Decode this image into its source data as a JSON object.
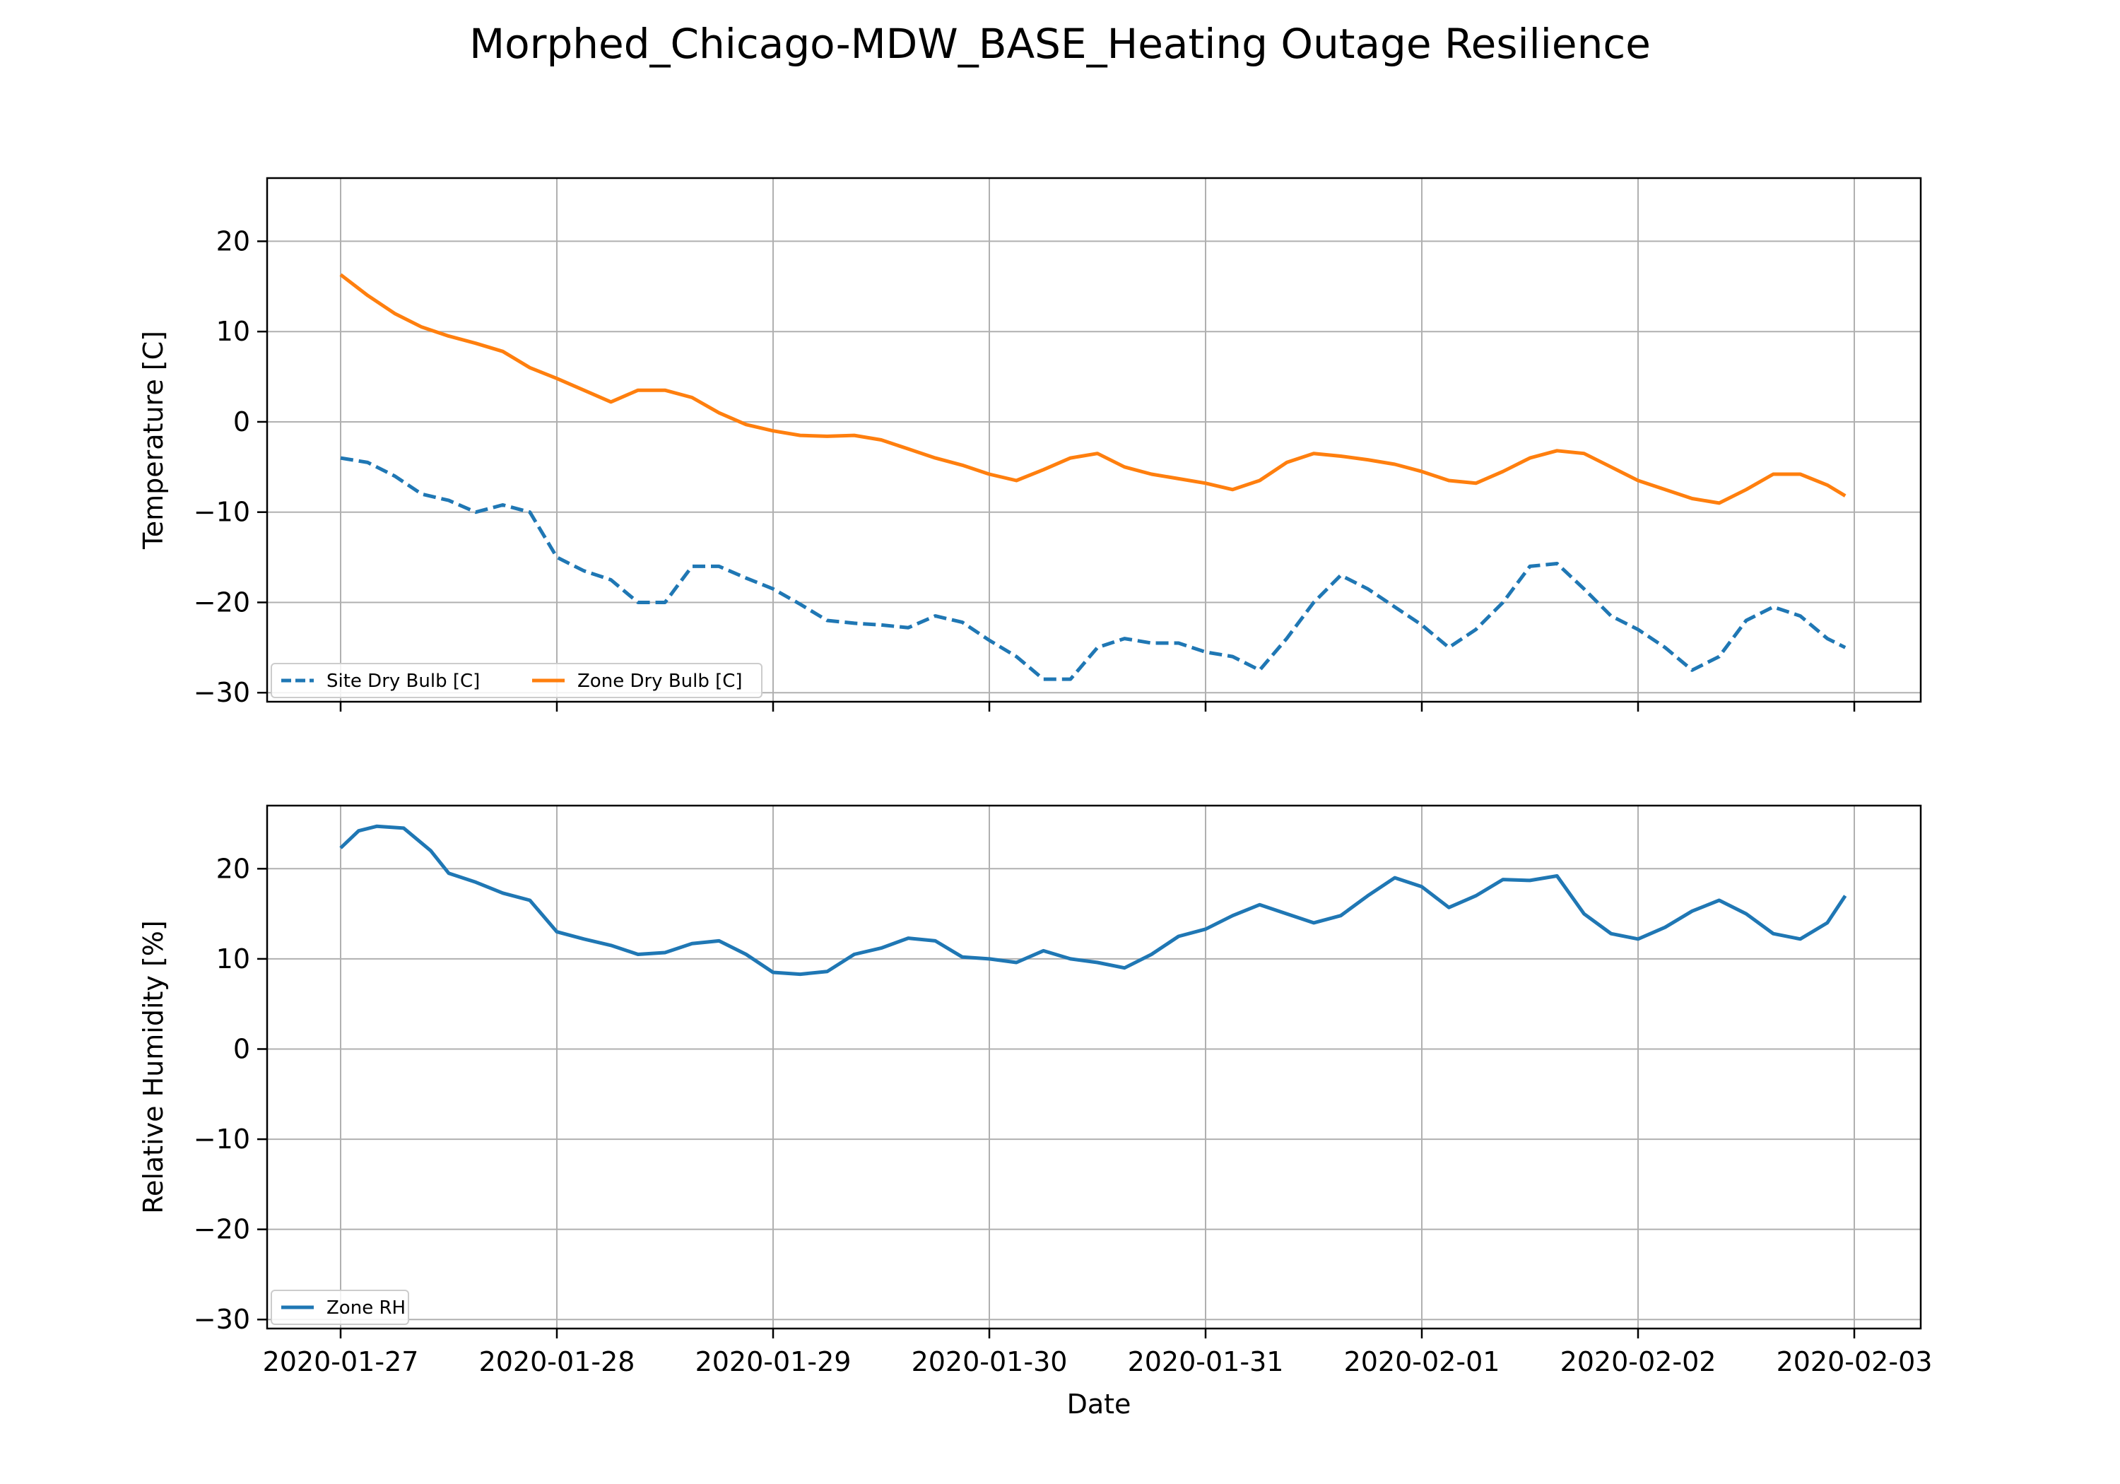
{
  "figure": {
    "suptitle": "Morphed_Chicago-MDW_BASE_Heating Outage Resilience",
    "xlabel": "Date"
  },
  "colors": {
    "site_dry_bulb": "#1f77b4",
    "zone_dry_bulb": "#ff7f0e",
    "zone_rh": "#1f77b4",
    "grid": "#b0b0b0"
  },
  "chart_data": [
    {
      "type": "line",
      "ylabel": "Temperature [C]",
      "xlabel": "",
      "ylim": [
        -31,
        27
      ],
      "yticks": [
        -30,
        -20,
        -10,
        0,
        10,
        20
      ],
      "xticks": [
        "2020-01-27",
        "2020-01-28",
        "2020-01-29",
        "2020-01-30",
        "2020-01-31",
        "2020-02-01",
        "2020-02-02",
        "2020-02-03"
      ],
      "grid": true,
      "legend": "lower-left",
      "series": [
        {
          "name": "Site Dry Bulb [C]",
          "style": "dashed",
          "color": "#1f77b4",
          "x": [
            "2020-01-27 00:00",
            "2020-01-27 03:00",
            "2020-01-27 06:00",
            "2020-01-27 09:00",
            "2020-01-27 12:00",
            "2020-01-27 15:00",
            "2020-01-27 18:00",
            "2020-01-27 21:00",
            "2020-01-28 00:00",
            "2020-01-28 03:00",
            "2020-01-28 06:00",
            "2020-01-28 09:00",
            "2020-01-28 12:00",
            "2020-01-28 15:00",
            "2020-01-28 18:00",
            "2020-01-28 21:00",
            "2020-01-29 00:00",
            "2020-01-29 03:00",
            "2020-01-29 06:00",
            "2020-01-29 09:00",
            "2020-01-29 12:00",
            "2020-01-29 15:00",
            "2020-01-29 18:00",
            "2020-01-29 21:00",
            "2020-01-30 00:00",
            "2020-01-30 03:00",
            "2020-01-30 06:00",
            "2020-01-30 09:00",
            "2020-01-30 12:00",
            "2020-01-30 15:00",
            "2020-01-30 18:00",
            "2020-01-30 21:00",
            "2020-01-31 00:00",
            "2020-01-31 03:00",
            "2020-01-31 06:00",
            "2020-01-31 09:00",
            "2020-01-31 12:00",
            "2020-01-31 15:00",
            "2020-01-31 18:00",
            "2020-01-31 21:00",
            "2020-02-01 00:00",
            "2020-02-01 03:00",
            "2020-02-01 06:00",
            "2020-02-01 09:00",
            "2020-02-01 12:00",
            "2020-02-01 15:00",
            "2020-02-01 18:00",
            "2020-02-01 21:00",
            "2020-02-02 00:00",
            "2020-02-02 03:00",
            "2020-02-02 06:00",
            "2020-02-02 09:00",
            "2020-02-02 12:00",
            "2020-02-02 15:00",
            "2020-02-02 18:00",
            "2020-02-02 21:00",
            "2020-02-02 23:00"
          ],
          "values": [
            -4.0,
            -4.5,
            -6.0,
            -8.0,
            -8.7,
            -10.0,
            -9.2,
            -10.0,
            -15.0,
            -16.5,
            -17.5,
            -20.0,
            -20.0,
            -16.0,
            -16.0,
            -17.3,
            -18.5,
            -20.2,
            -22.0,
            -22.3,
            -22.5,
            -22.8,
            -21.5,
            -22.2,
            -24.2,
            -26.0,
            -28.5,
            -28.5,
            -25.0,
            -24.0,
            -24.5,
            -24.5,
            -25.5,
            -26.0,
            -27.5,
            -24.0,
            -20.0,
            -17.0,
            -18.5,
            -20.5,
            -22.5,
            -25.0,
            -23.0,
            -20.0,
            -16.0,
            -15.7,
            -18.5,
            -21.5,
            -23.0,
            -25.0,
            -27.5,
            -26.0,
            -22.0,
            -20.5,
            -21.5,
            -24.0,
            -25.0
          ]
        },
        {
          "name": "Zone Dry Bulb [C]",
          "style": "solid",
          "color": "#ff7f0e",
          "x": [
            "2020-01-27 00:00",
            "2020-01-27 03:00",
            "2020-01-27 06:00",
            "2020-01-27 09:00",
            "2020-01-27 12:00",
            "2020-01-27 15:00",
            "2020-01-27 18:00",
            "2020-01-27 21:00",
            "2020-01-28 00:00",
            "2020-01-28 03:00",
            "2020-01-28 06:00",
            "2020-01-28 09:00",
            "2020-01-28 12:00",
            "2020-01-28 15:00",
            "2020-01-28 18:00",
            "2020-01-28 21:00",
            "2020-01-29 00:00",
            "2020-01-29 03:00",
            "2020-01-29 06:00",
            "2020-01-29 09:00",
            "2020-01-29 12:00",
            "2020-01-29 15:00",
            "2020-01-29 18:00",
            "2020-01-29 21:00",
            "2020-01-30 00:00",
            "2020-01-30 03:00",
            "2020-01-30 06:00",
            "2020-01-30 09:00",
            "2020-01-30 12:00",
            "2020-01-30 15:00",
            "2020-01-30 18:00",
            "2020-01-30 21:00",
            "2020-01-31 00:00",
            "2020-01-31 03:00",
            "2020-01-31 06:00",
            "2020-01-31 09:00",
            "2020-01-31 12:00",
            "2020-01-31 15:00",
            "2020-01-31 18:00",
            "2020-01-31 21:00",
            "2020-02-01 00:00",
            "2020-02-01 03:00",
            "2020-02-01 06:00",
            "2020-02-01 09:00",
            "2020-02-01 12:00",
            "2020-02-01 15:00",
            "2020-02-01 18:00",
            "2020-02-01 21:00",
            "2020-02-02 00:00",
            "2020-02-02 03:00",
            "2020-02-02 06:00",
            "2020-02-02 09:00",
            "2020-02-02 12:00",
            "2020-02-02 15:00",
            "2020-02-02 18:00",
            "2020-02-02 21:00",
            "2020-02-02 23:00"
          ],
          "values": [
            16.3,
            14.0,
            12.0,
            10.5,
            9.5,
            8.7,
            7.8,
            6.0,
            4.8,
            3.5,
            2.2,
            3.5,
            3.5,
            2.7,
            1.0,
            -0.3,
            -1.0,
            -1.5,
            -1.6,
            -1.5,
            -2.0,
            -3.0,
            -4.0,
            -4.8,
            -5.8,
            -6.5,
            -5.3,
            -4.0,
            -3.5,
            -5.0,
            -5.8,
            -6.3,
            -6.8,
            -7.5,
            -6.5,
            -4.5,
            -3.5,
            -3.8,
            -4.2,
            -4.7,
            -5.5,
            -6.5,
            -6.8,
            -5.5,
            -4.0,
            -3.2,
            -3.5,
            -5.0,
            -6.5,
            -7.5,
            -8.5,
            -9.0,
            -7.5,
            -5.8,
            -5.8,
            -7.0,
            -8.2
          ]
        }
      ]
    },
    {
      "type": "line",
      "ylabel": "Relative Humidity [%]",
      "xlabel": "Date",
      "ylim": [
        -31,
        27
      ],
      "yticks": [
        -30,
        -20,
        -10,
        0,
        10,
        20
      ],
      "xticks": [
        "2020-01-27",
        "2020-01-28",
        "2020-01-29",
        "2020-01-30",
        "2020-01-31",
        "2020-02-01",
        "2020-02-02",
        "2020-02-03"
      ],
      "grid": true,
      "legend": "lower-left",
      "series": [
        {
          "name": "Zone RH",
          "style": "solid",
          "color": "#1f77b4",
          "x": [
            "2020-01-27 00:00",
            "2020-01-27 02:00",
            "2020-01-27 04:00",
            "2020-01-27 07:00",
            "2020-01-27 10:00",
            "2020-01-27 12:00",
            "2020-01-27 15:00",
            "2020-01-27 18:00",
            "2020-01-27 21:00",
            "2020-01-28 00:00",
            "2020-01-28 03:00",
            "2020-01-28 06:00",
            "2020-01-28 09:00",
            "2020-01-28 12:00",
            "2020-01-28 15:00",
            "2020-01-28 18:00",
            "2020-01-28 21:00",
            "2020-01-29 00:00",
            "2020-01-29 03:00",
            "2020-01-29 06:00",
            "2020-01-29 09:00",
            "2020-01-29 12:00",
            "2020-01-29 15:00",
            "2020-01-29 18:00",
            "2020-01-29 21:00",
            "2020-01-30 00:00",
            "2020-01-30 03:00",
            "2020-01-30 06:00",
            "2020-01-30 09:00",
            "2020-01-30 12:00",
            "2020-01-30 15:00",
            "2020-01-30 18:00",
            "2020-01-30 21:00",
            "2020-01-31 00:00",
            "2020-01-31 03:00",
            "2020-01-31 06:00",
            "2020-01-31 09:00",
            "2020-01-31 12:00",
            "2020-01-31 15:00",
            "2020-01-31 18:00",
            "2020-01-31 21:00",
            "2020-02-01 00:00",
            "2020-02-01 03:00",
            "2020-02-01 06:00",
            "2020-02-01 09:00",
            "2020-02-01 12:00",
            "2020-02-01 15:00",
            "2020-02-01 18:00",
            "2020-02-01 21:00",
            "2020-02-02 00:00",
            "2020-02-02 03:00",
            "2020-02-02 06:00",
            "2020-02-02 09:00",
            "2020-02-02 12:00",
            "2020-02-02 15:00",
            "2020-02-02 18:00",
            "2020-02-02 21:00",
            "2020-02-02 23:00"
          ],
          "values": [
            22.3,
            24.2,
            24.7,
            24.5,
            22.0,
            19.5,
            18.5,
            17.3,
            16.5,
            13.0,
            12.2,
            11.5,
            10.5,
            10.7,
            11.7,
            12.0,
            10.5,
            8.5,
            8.3,
            8.6,
            10.5,
            11.2,
            12.3,
            12.0,
            10.2,
            10.0,
            9.6,
            10.9,
            10.0,
            9.6,
            9.0,
            10.5,
            12.5,
            13.3,
            14.8,
            16.0,
            15.0,
            14.0,
            14.8,
            17.0,
            19.0,
            18.0,
            15.7,
            17.0,
            18.8,
            18.7,
            19.2,
            15.0,
            12.8,
            12.2,
            13.5,
            15.3,
            16.5,
            15.0,
            12.8,
            12.2,
            14.0,
            17.0
          ]
        }
      ]
    }
  ]
}
